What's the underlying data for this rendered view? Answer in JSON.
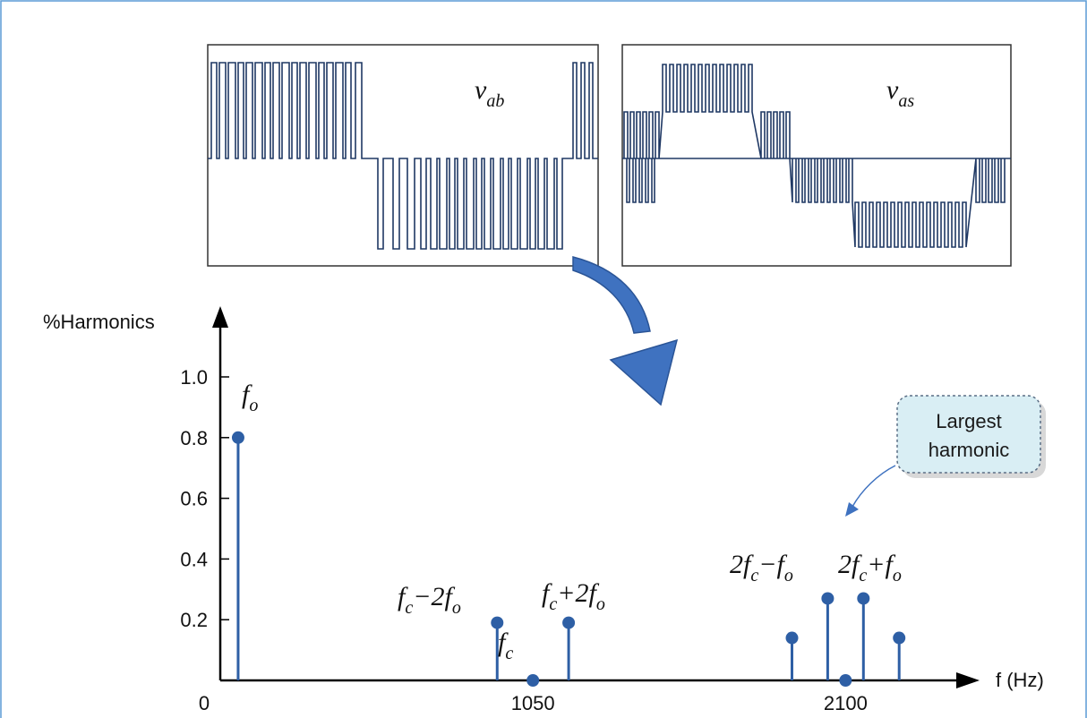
{
  "chart_data": {
    "type": "stem",
    "xlabel": "f (Hz)",
    "ylabel": "%Harmonics",
    "xlim": [
      0,
      2550
    ],
    "ylim": [
      0,
      1.0
    ],
    "x_ticks": [
      {
        "value": 0,
        "label": "0"
      },
      {
        "value": 1050,
        "label": "1050"
      },
      {
        "value": 2100,
        "label": "2100"
      }
    ],
    "y_ticks": [
      {
        "value": 0.2,
        "label": "0.2"
      },
      {
        "value": 0.4,
        "label": "0.4"
      },
      {
        "value": 0.6,
        "label": "0.6"
      },
      {
        "value": 0.8,
        "label": "0.8"
      },
      {
        "value": 1.0,
        "label": "1.0"
      }
    ],
    "points": [
      {
        "x": 60,
        "y": 0.8
      },
      {
        "x": 930,
        "y": 0.19
      },
      {
        "x": 1050,
        "y": 0.0
      },
      {
        "x": 1170,
        "y": 0.19
      },
      {
        "x": 1920,
        "y": 0.14
      },
      {
        "x": 2040,
        "y": 0.27
      },
      {
        "x": 2100,
        "y": 0.0
      },
      {
        "x": 2160,
        "y": 0.27
      },
      {
        "x": 2280,
        "y": 0.14
      }
    ],
    "grid": false,
    "legend": "none"
  },
  "labels": {
    "fo": "f",
    "fo_sub": "o",
    "fc_minus_2fo": "f c −2f o",
    "fc": "f c",
    "fc_plus_2fo": "f c +2f o",
    "two_fc_minus_fo": "2f c −f o",
    "two_fc_plus_fo": "2f c +f o"
  },
  "waveforms": {
    "left_label_main": "v",
    "left_label_sub": "ab",
    "right_label_main": "v",
    "right_label_sub": "as"
  },
  "callout": {
    "line1": "Largest",
    "line2": "harmonic"
  },
  "colors": {
    "stem": "#2e5fa5",
    "wave": "#1f3864",
    "callout_fill": "#d9eef4",
    "arrow": "#3f72c0",
    "frame": "#5b9bd5"
  }
}
